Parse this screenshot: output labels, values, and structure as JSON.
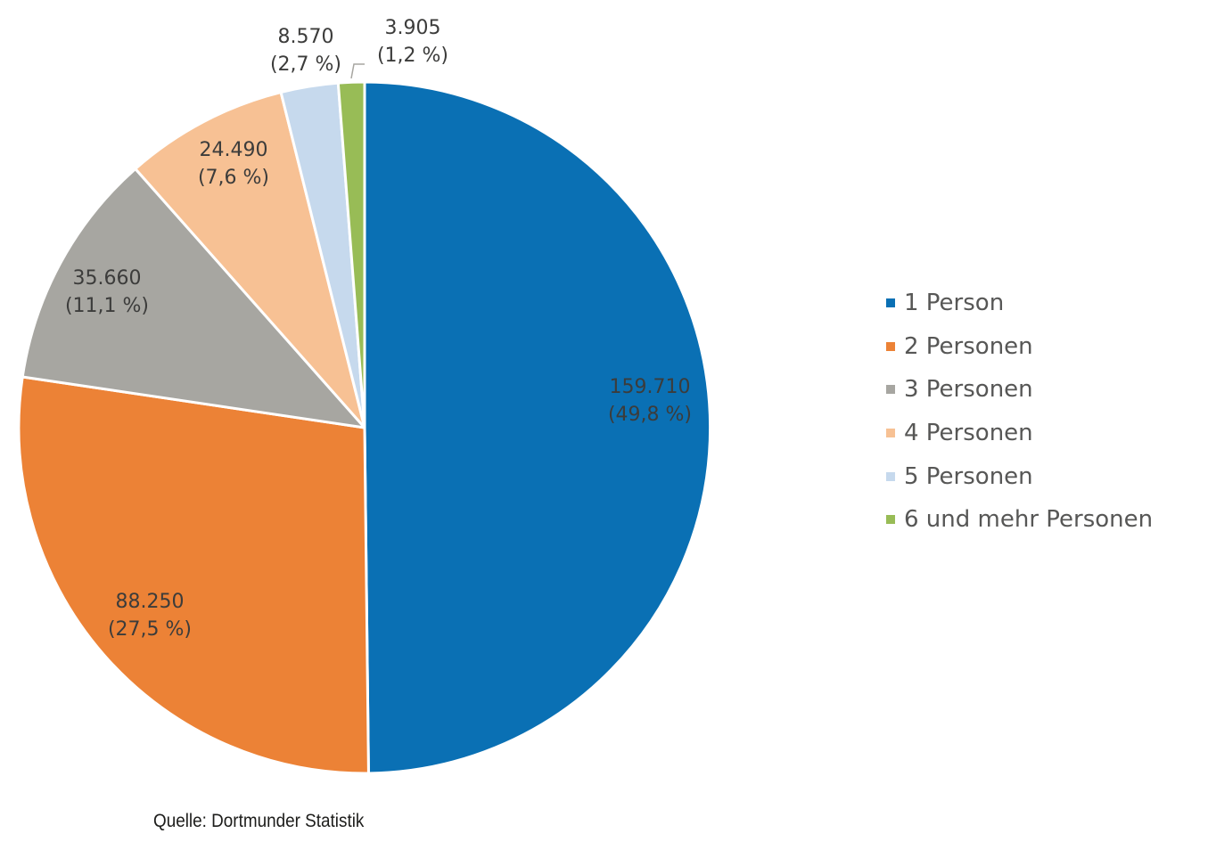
{
  "chart_data": {
    "type": "pie",
    "slices": [
      {
        "label": "1 Person",
        "value": 159710,
        "value_text": "159.710",
        "percent_text": "(49,8 %)",
        "color": "#0a70b4"
      },
      {
        "label": "2 Personen",
        "value": 88250,
        "value_text": "88.250",
        "percent_text": "(27,5 %)",
        "color": "#ec8236"
      },
      {
        "label": "3 Personen",
        "value": 35660,
        "value_text": "35.660",
        "percent_text": "(11,1 %)",
        "color": "#a7a6a1"
      },
      {
        "label": "4 Personen",
        "value": 24490,
        "value_text": "24.490",
        "percent_text": "(7,6 %)",
        "color": "#f7c194"
      },
      {
        "label": "5 Personen",
        "value": 8570,
        "value_text": "8.570",
        "percent_text": "(2,7 %)",
        "color": "#c6d9ed"
      },
      {
        "label": "6 und mehr Personen",
        "value": 3905,
        "value_text": "3.905",
        "percent_text": "(1,2 %)",
        "color": "#98bc56"
      }
    ],
    "start_angle": "12 o'clock",
    "direction": "clockwise",
    "legend_position": "right"
  },
  "source": "Quelle: Dortmunder Statistik"
}
